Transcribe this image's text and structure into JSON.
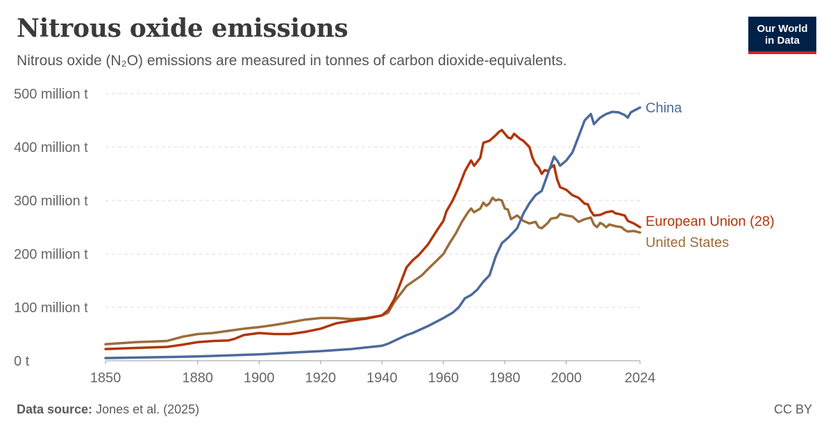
{
  "header": {
    "title": "Nitrous oxide emissions",
    "subtitle": "Nitrous oxide (N₂O) emissions are measured in tonnes of carbon dioxide-equivalents."
  },
  "logo": {
    "line1": "Our World",
    "line2": "in Data",
    "bg_color": "#002147",
    "accent_color": "#ce261e"
  },
  "footer": {
    "source_label": "Data source:",
    "source_text": "Jones et al. (2025)",
    "license": "CC BY"
  },
  "chart_data": {
    "type": "line",
    "title": "Nitrous oxide emissions",
    "subtitle": "Nitrous oxide (N₂O) emissions are measured in tonnes of carbon dioxide-equivalents.",
    "xlabel": "",
    "ylabel": "",
    "xlim": [
      1850,
      2024
    ],
    "ylim": [
      0,
      500
    ],
    "y_unit_note": "values in million tonnes CO2-equivalents",
    "x_ticks": [
      1850,
      1880,
      1900,
      1920,
      1940,
      1960,
      1980,
      2000,
      2024
    ],
    "y_ticks": [
      {
        "value": 0,
        "label": "0 t"
      },
      {
        "value": 100,
        "label": "100 million t"
      },
      {
        "value": 200,
        "label": "200 million t"
      },
      {
        "value": 300,
        "label": "300 million t"
      },
      {
        "value": 400,
        "label": "400 million t"
      },
      {
        "value": 500,
        "label": "500 million t"
      }
    ],
    "grid": "horizontal dashed",
    "legend": "inline labels at line ends (right)",
    "series": [
      {
        "name": "China",
        "color": "#4c6a9c",
        "points": [
          [
            1850,
            5
          ],
          [
            1860,
            6
          ],
          [
            1870,
            7
          ],
          [
            1880,
            8
          ],
          [
            1890,
            10
          ],
          [
            1900,
            12
          ],
          [
            1910,
            15
          ],
          [
            1920,
            18
          ],
          [
            1930,
            22
          ],
          [
            1935,
            25
          ],
          [
            1940,
            28
          ],
          [
            1942,
            32
          ],
          [
            1945,
            40
          ],
          [
            1948,
            48
          ],
          [
            1950,
            52
          ],
          [
            1955,
            65
          ],
          [
            1960,
            80
          ],
          [
            1963,
            90
          ],
          [
            1965,
            100
          ],
          [
            1967,
            117
          ],
          [
            1969,
            123
          ],
          [
            1971,
            133
          ],
          [
            1973,
            148
          ],
          [
            1975,
            160
          ],
          [
            1977,
            195
          ],
          [
            1979,
            220
          ],
          [
            1981,
            230
          ],
          [
            1984,
            248
          ],
          [
            1986,
            275
          ],
          [
            1988,
            295
          ],
          [
            1990,
            310
          ],
          [
            1992,
            318
          ],
          [
            1994,
            350
          ],
          [
            1996,
            382
          ],
          [
            1997,
            375
          ],
          [
            1998,
            365
          ],
          [
            2000,
            375
          ],
          [
            2002,
            390
          ],
          [
            2004,
            420
          ],
          [
            2006,
            450
          ],
          [
            2008,
            462
          ],
          [
            2009,
            443
          ],
          [
            2011,
            455
          ],
          [
            2013,
            462
          ],
          [
            2015,
            466
          ],
          [
            2017,
            465
          ],
          [
            2019,
            460
          ],
          [
            2020,
            455
          ],
          [
            2021,
            465
          ],
          [
            2022,
            468
          ],
          [
            2024,
            474
          ]
        ]
      },
      {
        "name": "European Union (28)",
        "color": "#b13507",
        "points": [
          [
            1850,
            22
          ],
          [
            1860,
            24
          ],
          [
            1870,
            26
          ],
          [
            1875,
            30
          ],
          [
            1880,
            35
          ],
          [
            1885,
            37
          ],
          [
            1890,
            38
          ],
          [
            1892,
            41
          ],
          [
            1895,
            48
          ],
          [
            1900,
            52
          ],
          [
            1905,
            50
          ],
          [
            1910,
            50
          ],
          [
            1915,
            54
          ],
          [
            1920,
            60
          ],
          [
            1925,
            70
          ],
          [
            1930,
            75
          ],
          [
            1935,
            79
          ],
          [
            1940,
            85
          ],
          [
            1942,
            95
          ],
          [
            1944,
            115
          ],
          [
            1946,
            145
          ],
          [
            1948,
            175
          ],
          [
            1950,
            188
          ],
          [
            1952,
            198
          ],
          [
            1955,
            218
          ],
          [
            1958,
            245
          ],
          [
            1960,
            262
          ],
          [
            1961,
            280
          ],
          [
            1963,
            300
          ],
          [
            1965,
            325
          ],
          [
            1967,
            355
          ],
          [
            1969,
            375
          ],
          [
            1970,
            365
          ],
          [
            1972,
            380
          ],
          [
            1973,
            408
          ],
          [
            1975,
            412
          ],
          [
            1977,
            422
          ],
          [
            1978,
            428
          ],
          [
            1979,
            432
          ],
          [
            1980,
            425
          ],
          [
            1981,
            418
          ],
          [
            1982,
            416
          ],
          [
            1983,
            425
          ],
          [
            1984,
            420
          ],
          [
            1985,
            415
          ],
          [
            1986,
            412
          ],
          [
            1988,
            400
          ],
          [
            1989,
            380
          ],
          [
            1990,
            368
          ],
          [
            1991,
            362
          ],
          [
            1992,
            350
          ],
          [
            1993,
            357
          ],
          [
            1994,
            355
          ],
          [
            1995,
            362
          ],
          [
            1996,
            366
          ],
          [
            1997,
            340
          ],
          [
            1998,
            325
          ],
          [
            2000,
            320
          ],
          [
            2002,
            310
          ],
          [
            2004,
            305
          ],
          [
            2006,
            294
          ],
          [
            2007,
            293
          ],
          [
            2008,
            280
          ],
          [
            2009,
            272
          ],
          [
            2011,
            273
          ],
          [
            2013,
            278
          ],
          [
            2015,
            280
          ],
          [
            2016,
            276
          ],
          [
            2017,
            275
          ],
          [
            2019,
            272
          ],
          [
            2020,
            262
          ],
          [
            2022,
            257
          ],
          [
            2024,
            250
          ]
        ]
      },
      {
        "name": "United States",
        "color": "#9a6d3a",
        "points": [
          [
            1850,
            31
          ],
          [
            1860,
            35
          ],
          [
            1870,
            37
          ],
          [
            1875,
            45
          ],
          [
            1880,
            50
          ],
          [
            1885,
            52
          ],
          [
            1890,
            56
          ],
          [
            1895,
            60
          ],
          [
            1900,
            63
          ],
          [
            1905,
            67
          ],
          [
            1910,
            72
          ],
          [
            1915,
            77
          ],
          [
            1920,
            80
          ],
          [
            1925,
            80
          ],
          [
            1930,
            78
          ],
          [
            1935,
            80
          ],
          [
            1940,
            85
          ],
          [
            1942,
            90
          ],
          [
            1944,
            110
          ],
          [
            1946,
            125
          ],
          [
            1948,
            140
          ],
          [
            1950,
            148
          ],
          [
            1953,
            160
          ],
          [
            1955,
            172
          ],
          [
            1957,
            183
          ],
          [
            1960,
            200
          ],
          [
            1962,
            220
          ],
          [
            1964,
            238
          ],
          [
            1966,
            260
          ],
          [
            1968,
            278
          ],
          [
            1969,
            285
          ],
          [
            1970,
            278
          ],
          [
            1972,
            285
          ],
          [
            1973,
            296
          ],
          [
            1974,
            290
          ],
          [
            1975,
            295
          ],
          [
            1976,
            305
          ],
          [
            1977,
            300
          ],
          [
            1978,
            302
          ],
          [
            1979,
            300
          ],
          [
            1980,
            285
          ],
          [
            1981,
            283
          ],
          [
            1982,
            265
          ],
          [
            1984,
            272
          ],
          [
            1986,
            262
          ],
          [
            1988,
            257
          ],
          [
            1990,
            260
          ],
          [
            1991,
            250
          ],
          [
            1992,
            248
          ],
          [
            1994,
            258
          ],
          [
            1995,
            266
          ],
          [
            1997,
            268
          ],
          [
            1998,
            275
          ],
          [
            2000,
            272
          ],
          [
            2002,
            270
          ],
          [
            2004,
            260
          ],
          [
            2006,
            265
          ],
          [
            2008,
            268
          ],
          [
            2009,
            255
          ],
          [
            2010,
            250
          ],
          [
            2011,
            258
          ],
          [
            2012,
            255
          ],
          [
            2013,
            250
          ],
          [
            2014,
            255
          ],
          [
            2016,
            252
          ],
          [
            2018,
            250
          ],
          [
            2019,
            245
          ],
          [
            2020,
            242
          ],
          [
            2022,
            243
          ],
          [
            2024,
            240
          ]
        ]
      }
    ],
    "label_positions": {
      "China": 474,
      "European Union (28)": 262,
      "United States": 222
    }
  }
}
